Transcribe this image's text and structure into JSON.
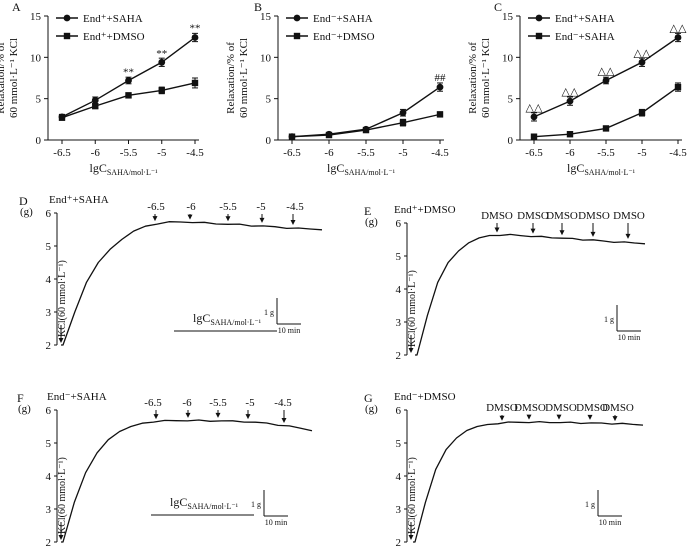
{
  "chart_data": [
    {
      "type": "line",
      "panel": "A",
      "ylabel_lines": [
        "Relaxation/% of",
        "60 mmol·L⁻¹ KCl"
      ],
      "xlabel_main": "lgC",
      "xlabel_sub": "SAHA/mol·L⁻¹",
      "categories": [
        "-6.5",
        "-6",
        "-5.5",
        "-5",
        "-4.5"
      ],
      "ylim": [
        0,
        15
      ],
      "yticks": [
        "0",
        "5",
        "10",
        "15"
      ],
      "legend_position": "top-left",
      "series": [
        {
          "name": "End⁺+SAHA",
          "marker": "circle",
          "values": [
            2.8,
            4.8,
            7.2,
            9.4,
            12.4
          ],
          "errors": [
            0.3,
            0.4,
            0.4,
            0.5,
            0.5
          ]
        },
        {
          "name": "End⁺+DMSO",
          "marker": "square",
          "values": [
            2.7,
            4.1,
            5.4,
            6.0,
            6.9
          ],
          "errors": [
            0.3,
            0.3,
            0.3,
            0.4,
            0.6
          ]
        }
      ],
      "annotations": [
        {
          "text": "**",
          "category": "-5.5",
          "value": 8.3
        },
        {
          "text": "**",
          "category": "-5",
          "value": 10.5
        },
        {
          "text": "**",
          "category": "-4.5",
          "value": 13.6
        }
      ]
    },
    {
      "type": "line",
      "panel": "B",
      "ylabel_lines": [
        "Relaxation/% of",
        "60 mmol·L⁻¹ KCl"
      ],
      "xlabel_main": "lgC",
      "xlabel_sub": "SAHA/mol·L⁻¹",
      "categories": [
        "-6.5",
        "-6",
        "-5.5",
        "-5",
        "-4.5"
      ],
      "ylim": [
        0,
        15
      ],
      "yticks": [
        "0",
        "5",
        "10",
        "15"
      ],
      "legend_position": "top-left",
      "series": [
        {
          "name": "End⁻+SAHA",
          "marker": "circle",
          "values": [
            0.4,
            0.7,
            1.3,
            3.3,
            6.4
          ],
          "errors": [
            0.1,
            0.1,
            0.2,
            0.4,
            0.5
          ]
        },
        {
          "name": "End⁻+DMSO",
          "marker": "square",
          "values": [
            0.4,
            0.6,
            1.2,
            2.1,
            3.1
          ],
          "errors": [
            0.1,
            0.1,
            0.2,
            0.4,
            0.3
          ]
        }
      ],
      "annotations": [
        {
          "text": "##",
          "category": "-4.5",
          "value": 7.6
        }
      ]
    },
    {
      "type": "line",
      "panel": "C",
      "ylabel_lines": [
        "Relaxation/% of",
        "60 mmol·L⁻¹ KCl"
      ],
      "xlabel_main": "lgC",
      "xlabel_sub": "SAHA/mol·L⁻¹",
      "categories": [
        "-6.5",
        "-6",
        "-5.5",
        "-5",
        "-4.5"
      ],
      "ylim": [
        0,
        15
      ],
      "yticks": [
        "0",
        "5",
        "10",
        "15"
      ],
      "legend_position": "top-left",
      "series": [
        {
          "name": "End⁺+SAHA",
          "marker": "circle",
          "values": [
            2.8,
            4.7,
            7.2,
            9.4,
            12.4
          ],
          "errors": [
            0.5,
            0.5,
            0.4,
            0.5,
            0.5
          ]
        },
        {
          "name": "End⁻+SAHA",
          "marker": "square",
          "values": [
            0.4,
            0.7,
            1.4,
            3.3,
            6.4
          ],
          "errors": [
            0.1,
            0.1,
            0.2,
            0.4,
            0.5
          ]
        }
      ],
      "annotations": [
        {
          "text": "△△",
          "category": "-6.5",
          "value": 4.0
        },
        {
          "text": "△△",
          "category": "-6",
          "value": 5.9
        },
        {
          "text": "△△",
          "category": "-5.5",
          "value": 8.4
        },
        {
          "text": "△△",
          "category": "-5",
          "value": 10.6
        },
        {
          "text": "△△",
          "category": "-4.5",
          "value": 13.6
        }
      ]
    },
    {
      "type": "line",
      "panel": "D",
      "title": "End⁺+SAHA",
      "ylabel": "(g)",
      "ylim": [
        2,
        6
      ],
      "yticks": [
        "2",
        "3",
        "4",
        "5",
        "6"
      ],
      "kcl_label": "KCl(60 mmol·L⁻¹)",
      "trace_tension_g": [
        2.0,
        2.0,
        3.0,
        3.9,
        4.5,
        4.9,
        5.2,
        5.45,
        5.6,
        5.68,
        5.72,
        5.73,
        5.72,
        5.7,
        5.68,
        5.66,
        5.65,
        5.62,
        5.6,
        5.58,
        5.55,
        5.53,
        5.52,
        5.5
      ],
      "markers": [
        "-6.5",
        "-6",
        "-5.5",
        "-5",
        "-4.5"
      ],
      "conc_label_main": "lgC",
      "conc_label_sub": "SAHA/mol·L⁻¹",
      "scale_y": "1 g",
      "scale_x": "10 min"
    },
    {
      "type": "line",
      "panel": "E",
      "title": "End⁺+DMSO",
      "ylabel": "(g)",
      "ylim": [
        2,
        6
      ],
      "yticks": [
        "2",
        "3",
        "4",
        "5",
        "6"
      ],
      "kcl_label": "KCl(60 mmol·L⁻¹)",
      "trace_tension_g": [
        2.0,
        2.0,
        3.2,
        4.2,
        4.8,
        5.15,
        5.4,
        5.55,
        5.62,
        5.64,
        5.64,
        5.62,
        5.6,
        5.58,
        5.56,
        5.54,
        5.52,
        5.5,
        5.48,
        5.45,
        5.43,
        5.41,
        5.4,
        5.38
      ],
      "markers": [
        "DMSO",
        "DMSO",
        "DMSO",
        "DMSO",
        "DMSO"
      ],
      "scale_y": "1 g",
      "scale_x": "10 min"
    },
    {
      "type": "line",
      "panel": "F",
      "title": "End⁻+SAHA",
      "ylabel": "(g)",
      "ylim": [
        2,
        6
      ],
      "yticks": [
        "2",
        "3",
        "4",
        "5",
        "6"
      ],
      "kcl_label": "KCl(60 mmol·L⁻¹)",
      "trace_tension_g": [
        2.0,
        2.0,
        3.2,
        4.1,
        4.7,
        5.1,
        5.35,
        5.5,
        5.6,
        5.65,
        5.67,
        5.68,
        5.68,
        5.68,
        5.67,
        5.67,
        5.66,
        5.65,
        5.62,
        5.6,
        5.55,
        5.5,
        5.45,
        5.38
      ],
      "markers": [
        "-6.5",
        "-6",
        "-5.5",
        "-5",
        "-4.5"
      ],
      "conc_label_main": "lgC",
      "conc_label_sub": "SAHA/mol·L⁻¹",
      "scale_y": "1 g",
      "scale_x": "10 min"
    },
    {
      "type": "line",
      "panel": "G",
      "title": "End⁻+DMSO",
      "ylabel": "(g)",
      "ylim": [
        2,
        6
      ],
      "yticks": [
        "2",
        "3",
        "4",
        "5",
        "6"
      ],
      "kcl_label": "KCl(60 mmol·L⁻¹)",
      "trace_tension_g": [
        2.0,
        2.0,
        3.2,
        4.2,
        4.8,
        5.15,
        5.38,
        5.5,
        5.56,
        5.6,
        5.62,
        5.63,
        5.63,
        5.63,
        5.63,
        5.62,
        5.62,
        5.61,
        5.6,
        5.6,
        5.59,
        5.58,
        5.57,
        5.55
      ],
      "markers": [
        "DMSO",
        "DMSO",
        "DMSO",
        "DMSO",
        "DMSO"
      ],
      "scale_y": "1 g",
      "scale_x": "10 min"
    }
  ]
}
